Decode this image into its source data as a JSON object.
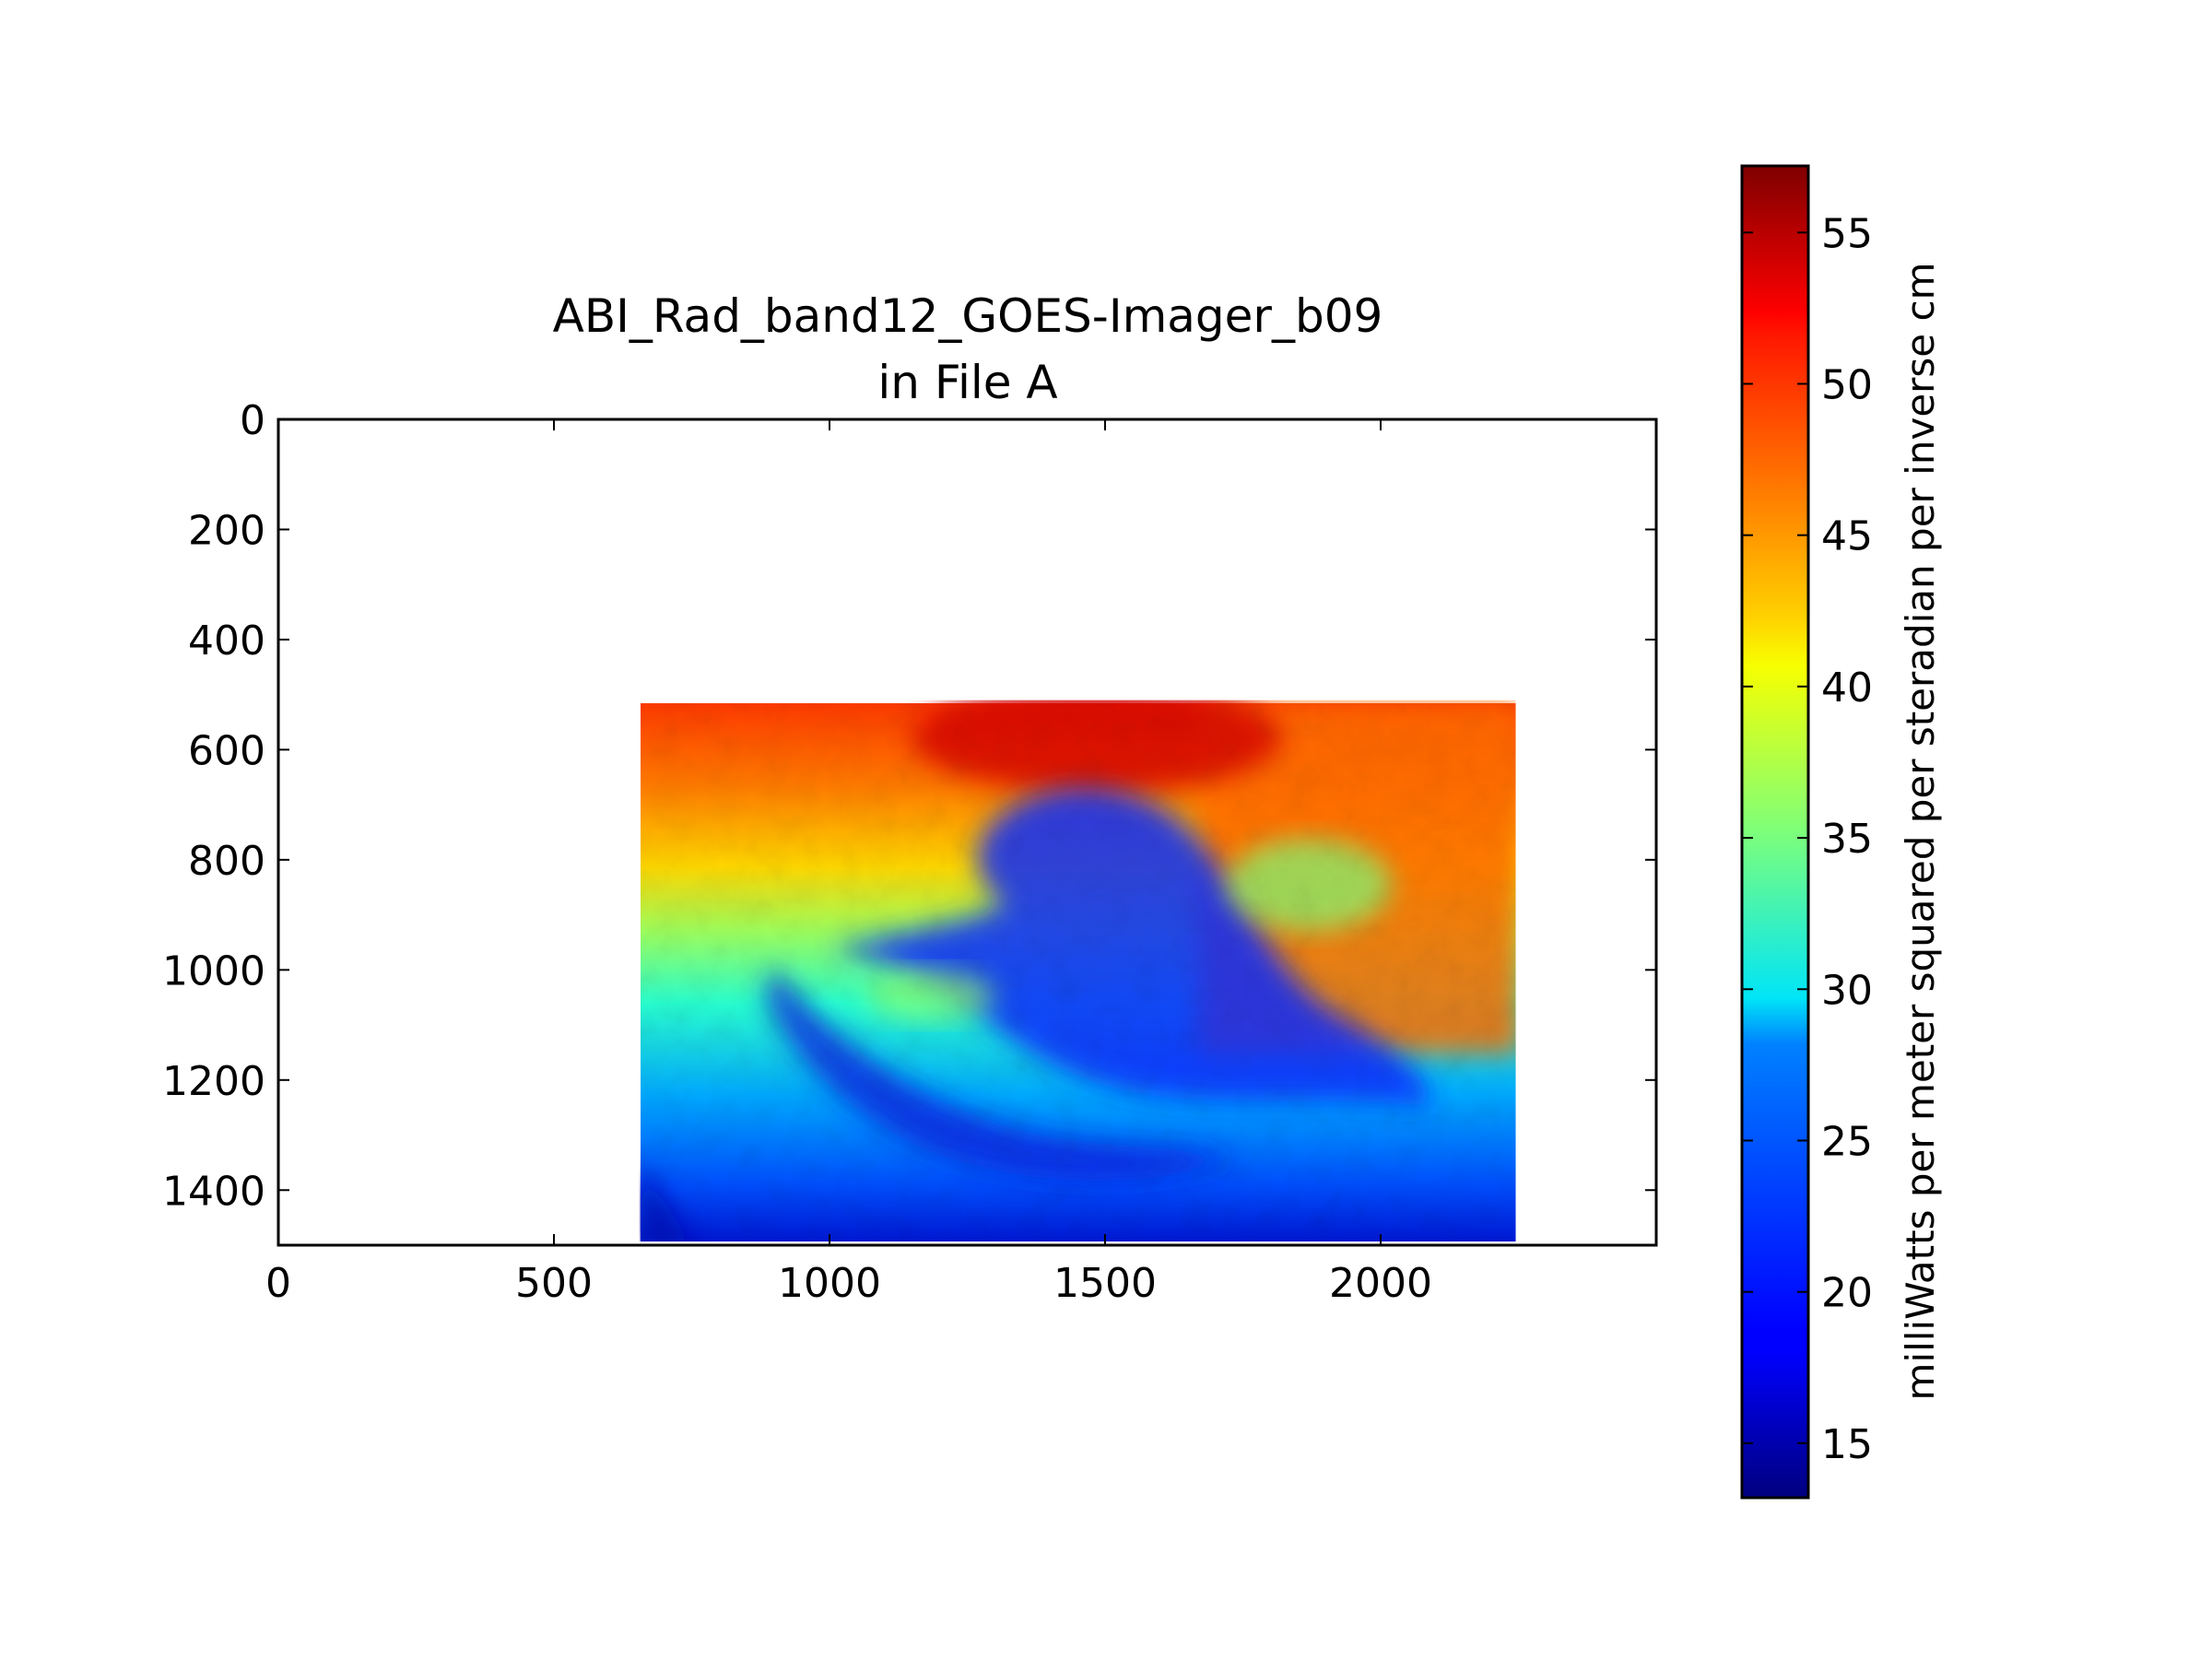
{
  "figure": {
    "title_line1": "ABI_Rad_band12_GOES-Imager_b09",
    "title_line2": "in File A"
  },
  "chart_data": {
    "type": "heatmap",
    "title": "ABI_Rad_band12_GOES-Imager_b09\nin File A",
    "xlabel": "",
    "ylabel": "",
    "xlim": [
      0,
      2500
    ],
    "ylim": [
      1500,
      0
    ],
    "x_ticks": [
      "0",
      "500",
      "1000",
      "1500",
      "2000"
    ],
    "y_ticks": [
      "0",
      "200",
      "400",
      "600",
      "800",
      "1000",
      "1200",
      "1400"
    ],
    "grid": false,
    "colormap": "jet",
    "data_extent": {
      "x": [
        655,
        2245
      ],
      "y": [
        510,
        1500
      ]
    },
    "colorbar": {
      "label": "milliWatts per meter squared per steradian per inverse cm",
      "range": [
        13.2,
        57.2
      ],
      "ticks": [
        "15",
        "20",
        "25",
        "30",
        "35",
        "40",
        "45",
        "50",
        "55"
      ],
      "placement": "right"
    }
  }
}
